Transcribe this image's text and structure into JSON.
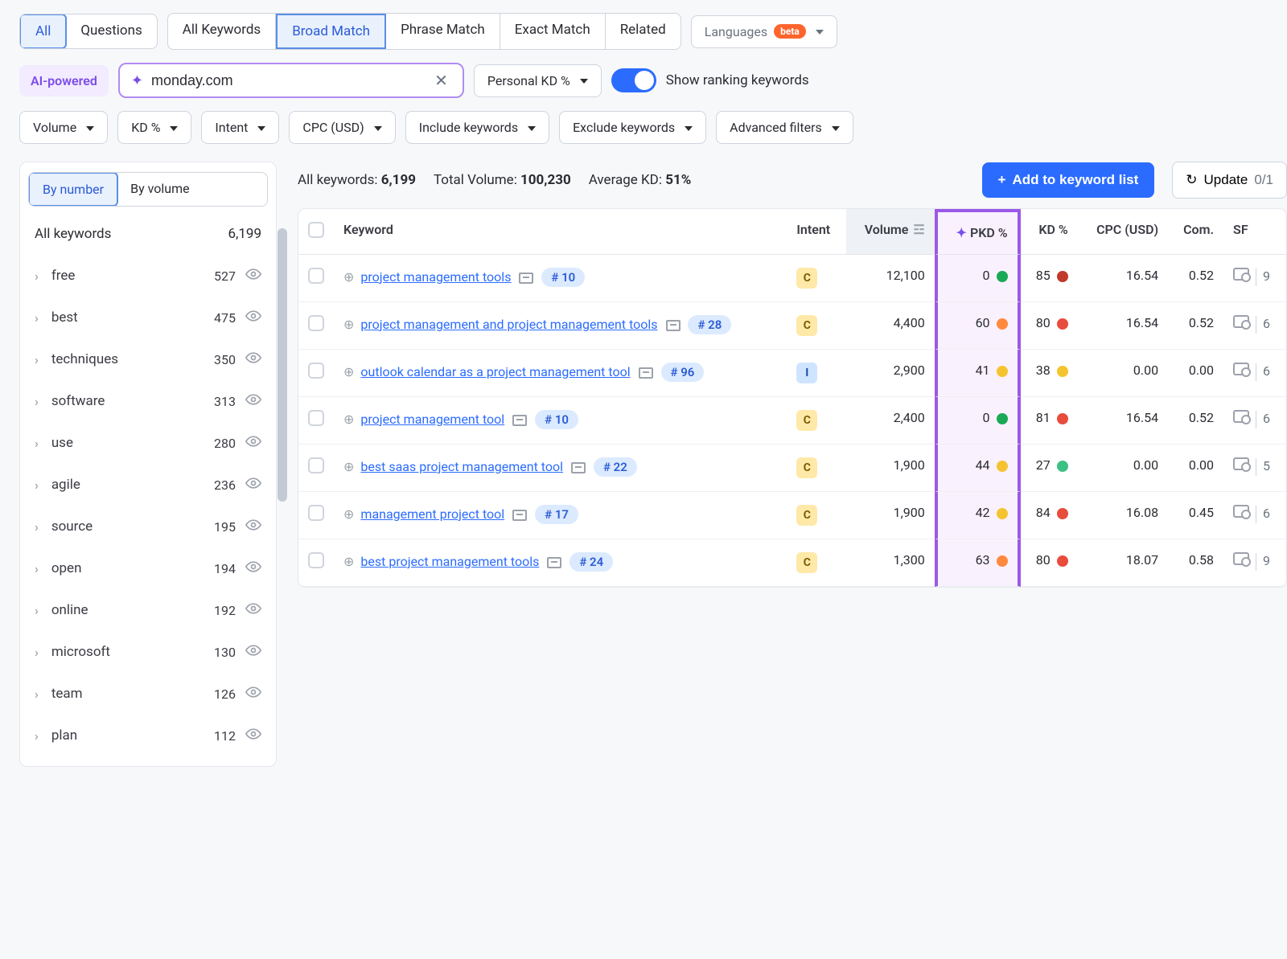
{
  "tabs_left": {
    "all": "All",
    "questions": "Questions"
  },
  "tabs_match": {
    "all_keywords": "All Keywords",
    "broad": "Broad Match",
    "phrase": "Phrase Match",
    "exact": "Exact Match",
    "related": "Related"
  },
  "languages": {
    "label": "Languages",
    "badge": "beta"
  },
  "ai": {
    "badge": "AI-powered",
    "value": "monday.com",
    "personal_kd": "Personal KD %",
    "toggle_label": "Show ranking keywords"
  },
  "filters": {
    "volume": "Volume",
    "kd": "KD %",
    "intent": "Intent",
    "cpc": "CPC (USD)",
    "include": "Include keywords",
    "exclude": "Exclude keywords",
    "advanced": "Advanced filters"
  },
  "sidebar": {
    "by_number": "By number",
    "by_volume": "By volume",
    "all_label": "All keywords",
    "all_count": "6,199",
    "items": [
      {
        "label": "free",
        "count": "527"
      },
      {
        "label": "best",
        "count": "475"
      },
      {
        "label": "techniques",
        "count": "350"
      },
      {
        "label": "software",
        "count": "313"
      },
      {
        "label": "use",
        "count": "280"
      },
      {
        "label": "agile",
        "count": "236"
      },
      {
        "label": "source",
        "count": "195"
      },
      {
        "label": "open",
        "count": "194"
      },
      {
        "label": "online",
        "count": "192"
      },
      {
        "label": "microsoft",
        "count": "130"
      },
      {
        "label": "team",
        "count": "126"
      },
      {
        "label": "plan",
        "count": "112"
      }
    ]
  },
  "summary": {
    "all_keywords_label": "All keywords:",
    "all_keywords_value": "6,199",
    "total_volume_label": "Total Volume:",
    "total_volume_value": "100,230",
    "avg_kd_label": "Average KD:",
    "avg_kd_value": "51%",
    "add_btn": "Add to keyword list",
    "update_btn": "Update",
    "update_count": "0/1"
  },
  "columns": {
    "keyword": "Keyword",
    "intent": "Intent",
    "volume": "Volume",
    "pkd": "PKD %",
    "kd": "KD %",
    "cpc": "CPC (USD)",
    "com": "Com.",
    "sf": "SF"
  },
  "colors": {
    "green": "#1aaa55",
    "teal": "#3bc183",
    "yellow": "#f4c430",
    "orange": "#ff8a3d",
    "red": "#e74c3c",
    "darkred": "#c0392b"
  },
  "rows": [
    {
      "keyword": "project management tools",
      "rank": "# 10",
      "intent": "C",
      "volume": "12,100",
      "pkd": "0",
      "pkd_color": "#1aaa55",
      "kd": "85",
      "kd_color": "#c0392b",
      "cpc": "16.54",
      "com": "0.52",
      "sf": "9"
    },
    {
      "keyword": "project management and project management tools",
      "rank": "# 28",
      "intent": "C",
      "volume": "4,400",
      "pkd": "60",
      "pkd_color": "#ff8a3d",
      "kd": "80",
      "kd_color": "#e74c3c",
      "cpc": "16.54",
      "com": "0.52",
      "sf": "6"
    },
    {
      "keyword": "outlook calendar as a project management tool",
      "rank": "# 96",
      "intent": "I",
      "volume": "2,900",
      "pkd": "41",
      "pkd_color": "#f4c430",
      "kd": "38",
      "kd_color": "#f4c430",
      "cpc": "0.00",
      "com": "0.00",
      "sf": "6"
    },
    {
      "keyword": "project management tool",
      "rank": "# 10",
      "intent": "C",
      "volume": "2,400",
      "pkd": "0",
      "pkd_color": "#1aaa55",
      "kd": "81",
      "kd_color": "#e74c3c",
      "cpc": "16.54",
      "com": "0.52",
      "sf": "6"
    },
    {
      "keyword": "best saas project management tool",
      "rank": "# 22",
      "intent": "C",
      "volume": "1,900",
      "pkd": "44",
      "pkd_color": "#f4c430",
      "kd": "27",
      "kd_color": "#3bc183",
      "cpc": "0.00",
      "com": "0.00",
      "sf": "5"
    },
    {
      "keyword": "management project tool",
      "rank": "# 17",
      "intent": "C",
      "volume": "1,900",
      "pkd": "42",
      "pkd_color": "#f4c430",
      "kd": "84",
      "kd_color": "#e74c3c",
      "cpc": "16.08",
      "com": "0.45",
      "sf": "6"
    },
    {
      "keyword": "best project management tools",
      "rank": "# 24",
      "intent": "C",
      "volume": "1,300",
      "pkd": "63",
      "pkd_color": "#ff8a3d",
      "kd": "80",
      "kd_color": "#e74c3c",
      "cpc": "18.07",
      "com": "0.58",
      "sf": "9"
    }
  ]
}
